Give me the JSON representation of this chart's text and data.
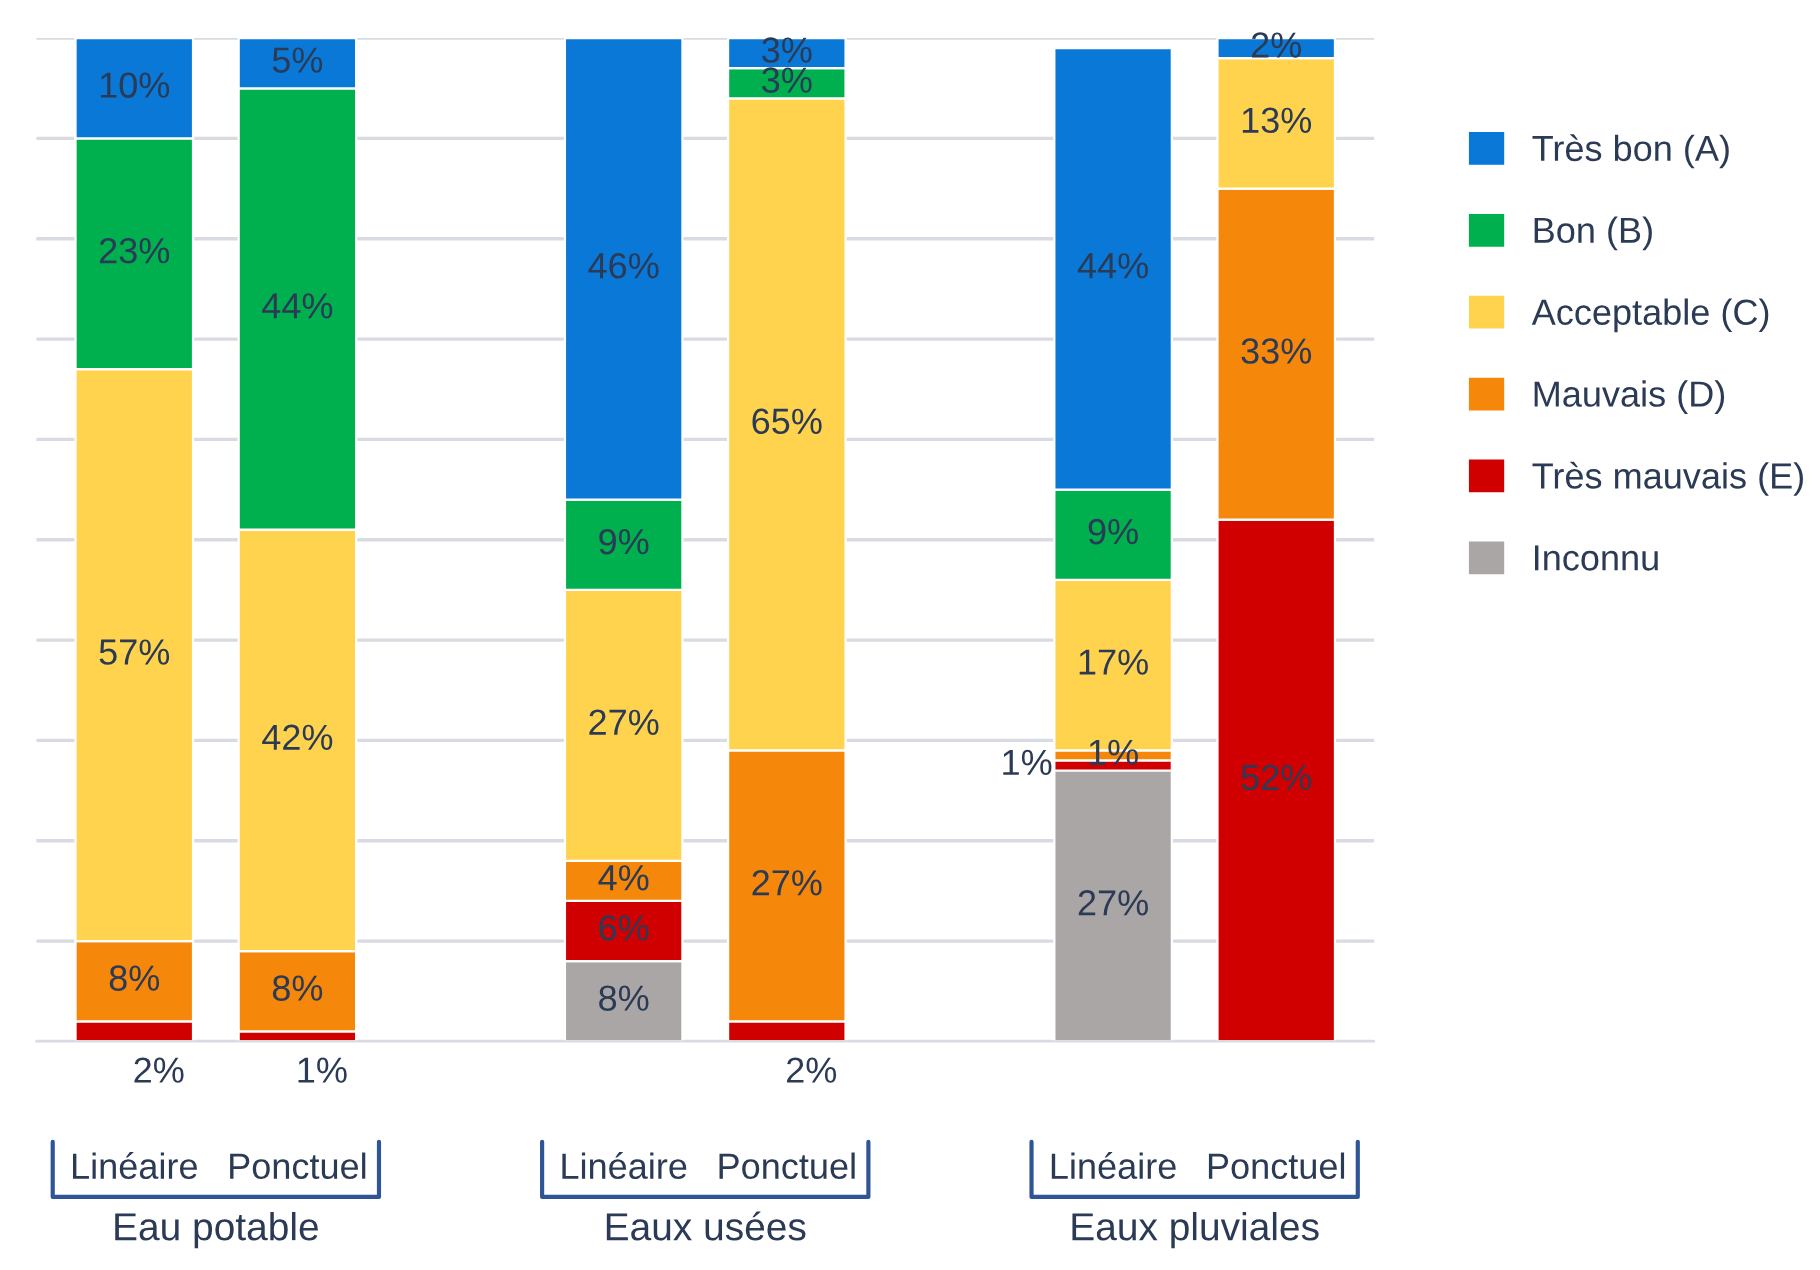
{
  "chart_data": {
    "type": "bar",
    "stacked": true,
    "categories": [
      "Linéaire",
      "Ponctuel",
      null,
      "Linéaire",
      "Ponctuel",
      null,
      "Linéaire",
      "Ponctuel"
    ],
    "series": [
      {
        "name": "Inconnu",
        "color": "#aba6a6",
        "values": [
          0,
          0,
          null,
          8,
          0,
          null,
          27,
          0
        ],
        "value_labels": [
          null,
          null,
          null,
          "8%",
          null,
          null,
          "27%",
          null
        ]
      },
      {
        "name": "Très mauvais (E)",
        "color": "#d10000",
        "values": [
          2,
          1,
          null,
          6,
          2,
          null,
          1,
          52
        ],
        "value_labels": [
          "2%",
          "1%",
          null,
          "6%",
          "2%",
          null,
          "1%",
          "52%"
        ]
      },
      {
        "name": "Mauvais (D)",
        "color": "#f5870a",
        "values": [
          8,
          8,
          null,
          4,
          27,
          null,
          1,
          33
        ],
        "value_labels": [
          "8%",
          "8%",
          null,
          "4%",
          "27%",
          null,
          "1%",
          "33%"
        ]
      },
      {
        "name": "Acceptable (C)",
        "color": "#ffd34d",
        "values": [
          57,
          42,
          null,
          27,
          65,
          null,
          17,
          13
        ],
        "value_labels": [
          "57%",
          "42%",
          null,
          "27%",
          "65%",
          null,
          "17%",
          "13%"
        ]
      },
      {
        "name": "Bon (B)",
        "color": "#00b04f",
        "values": [
          23,
          44,
          null,
          9,
          3,
          null,
          9,
          0
        ],
        "value_labels": [
          "23%",
          "44%",
          null,
          "9%",
          "3%",
          null,
          "9%",
          null
        ]
      },
      {
        "name": "Très bon (A)",
        "color": "#0a78d6",
        "values": [
          10,
          5,
          null,
          46,
          3,
          null,
          44,
          2
        ],
        "value_labels": [
          "10%",
          "5%",
          null,
          "46%",
          "3%",
          null,
          "44%",
          "2%"
        ]
      }
    ],
    "ylim": [
      0,
      100
    ],
    "yticks": [
      {
        "value": 0,
        "label": null
      },
      {
        "value": 10,
        "label": null
      },
      {
        "value": 20,
        "label": null
      },
      {
        "value": 30,
        "label": null
      },
      {
        "value": 40,
        "label": null
      },
      {
        "value": 50,
        "label": null
      },
      {
        "value": 60,
        "label": null
      },
      {
        "value": 70,
        "label": null
      },
      {
        "value": 80,
        "label": null
      },
      {
        "value": 90,
        "label": null
      },
      {
        "value": 100,
        "label": null
      }
    ],
    "grid": "y",
    "legend": "right",
    "tick_labels": "x",
    "annotations": [
      "Eau potable",
      "Eaux usées",
      "Eaux pluviales"
    ]
  }
}
